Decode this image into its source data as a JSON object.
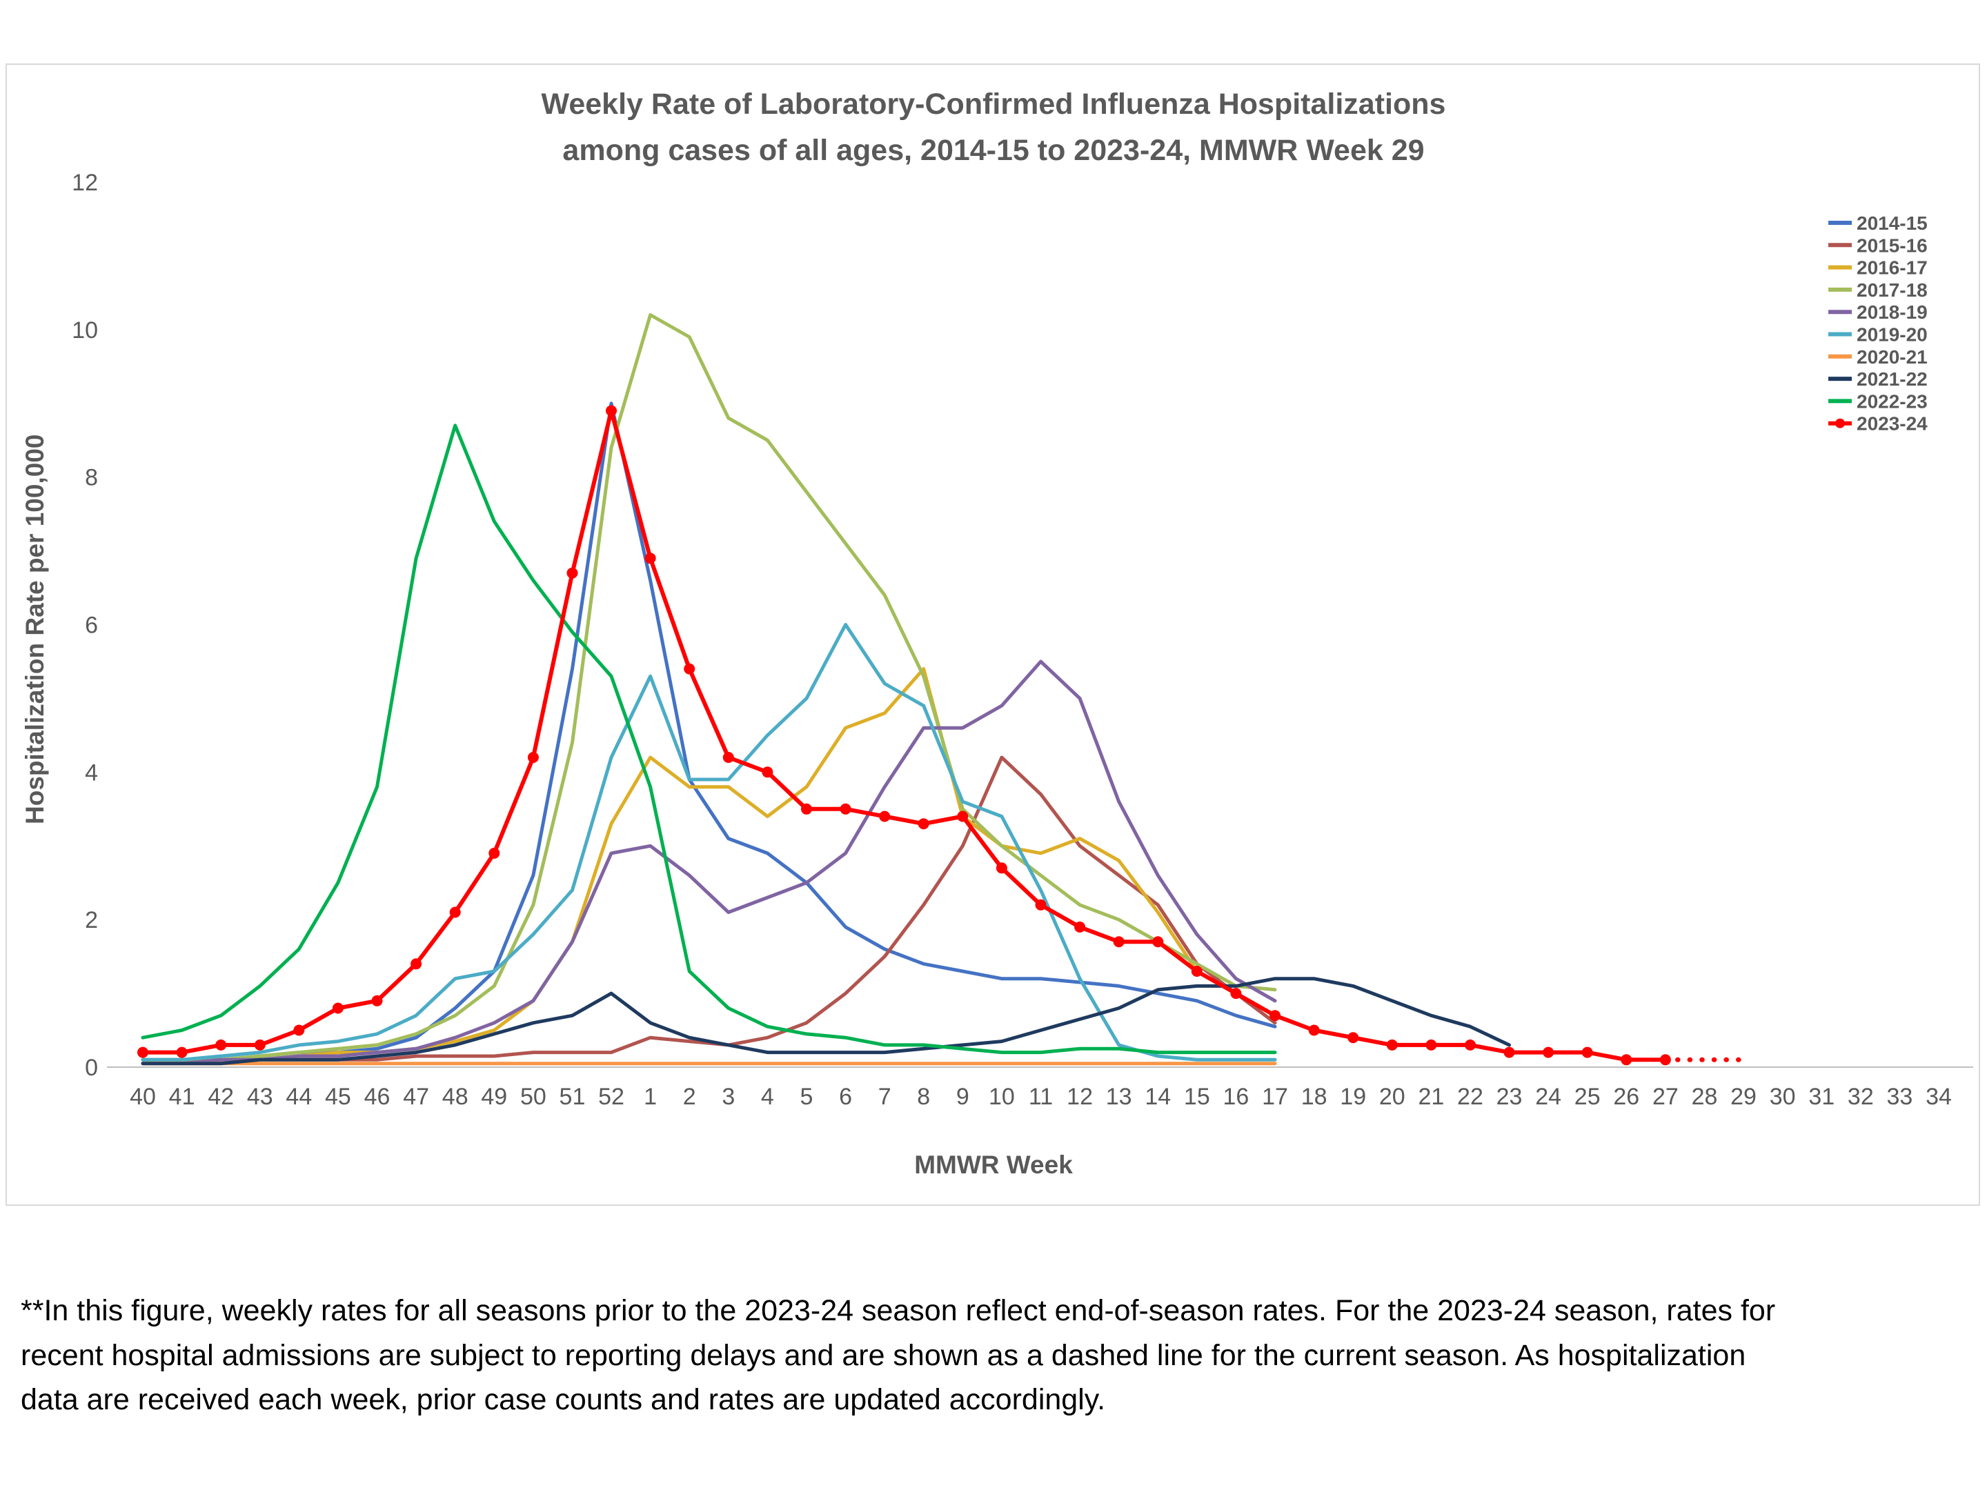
{
  "title": {
    "line1": "Weekly Rate of Laboratory-Confirmed Influenza Hospitalizations",
    "line2": "among cases of all ages, 2014-15 to 2023-24, MMWR Week 29"
  },
  "footnote": "**In this figure, weekly rates for all seasons prior to the 2023-24 season reflect end-of-season rates. For the 2023-24 season, rates for recent hospital admissions are subject to reporting delays and are shown as a dashed line for the current season. As hospitalization data are received each week, prior case counts and rates are updated accordingly.",
  "chart_data": {
    "type": "line",
    "title": "Weekly Rate of Laboratory-Confirmed Influenza Hospitalizations among cases of all ages, 2014-15 to 2023-24, MMWR Week 29",
    "xlabel": "MMWR Week",
    "ylabel": "Hospitalization Rate per 100,000",
    "ylim": [
      0,
      12
    ],
    "yticks": [
      0,
      2,
      4,
      6,
      8,
      10,
      12
    ],
    "grid": false,
    "legend_position": "right",
    "axis_color": "#bfbfbf",
    "text_color": "#595959",
    "categories": [
      "40",
      "41",
      "42",
      "43",
      "44",
      "45",
      "46",
      "47",
      "48",
      "49",
      "50",
      "51",
      "52",
      "1",
      "2",
      "3",
      "4",
      "5",
      "6",
      "7",
      "8",
      "9",
      "10",
      "11",
      "12",
      "13",
      "14",
      "15",
      "16",
      "17",
      "18",
      "19",
      "20",
      "21",
      "22",
      "23",
      "24",
      "25",
      "26",
      "27",
      "28",
      "29",
      "30",
      "31",
      "32",
      "33",
      "34"
    ],
    "series": [
      {
        "name": "2014-15",
        "color": "#4472C4",
        "values": [
          0.1,
          0.1,
          0.1,
          0.15,
          0.2,
          0.2,
          0.25,
          0.4,
          0.8,
          1.3,
          2.6,
          5.4,
          9.0,
          6.6,
          3.9,
          3.1,
          2.9,
          2.5,
          1.9,
          1.6,
          1.4,
          1.3,
          1.2,
          1.2,
          1.15,
          1.1,
          1.0,
          0.9,
          0.7,
          0.55,
          null,
          null,
          null,
          null,
          null,
          null,
          null,
          null,
          null,
          null,
          null,
          null,
          null,
          null,
          null,
          null,
          null
        ]
      },
      {
        "name": "2015-16",
        "color": "#B2544F",
        "values": [
          0.05,
          0.05,
          0.05,
          0.1,
          0.1,
          0.1,
          0.1,
          0.15,
          0.15,
          0.15,
          0.2,
          0.2,
          0.2,
          0.4,
          0.35,
          0.3,
          0.4,
          0.6,
          1.0,
          1.5,
          2.2,
          3.0,
          4.2,
          3.7,
          3.0,
          2.6,
          2.2,
          1.4,
          1.0,
          0.6,
          null,
          null,
          null,
          null,
          null,
          null,
          null,
          null,
          null,
          null,
          null,
          null,
          null,
          null,
          null,
          null,
          null
        ]
      },
      {
        "name": "2016-17",
        "color": "#DDAE27",
        "values": [
          0.05,
          0.1,
          0.1,
          0.1,
          0.15,
          0.2,
          0.2,
          0.25,
          0.35,
          0.5,
          0.9,
          1.7,
          3.3,
          4.2,
          3.8,
          3.8,
          3.4,
          3.8,
          4.6,
          4.8,
          5.4,
          3.4,
          3.0,
          2.9,
          3.1,
          2.8,
          2.1,
          1.3,
          1.0,
          0.7,
          null,
          null,
          null,
          null,
          null,
          null,
          null,
          null,
          null,
          null,
          null,
          null,
          null,
          null,
          null,
          null,
          null
        ]
      },
      {
        "name": "2017-18",
        "color": "#A3BD5A",
        "values": [
          0.1,
          0.1,
          0.1,
          0.15,
          0.2,
          0.25,
          0.3,
          0.45,
          0.7,
          1.1,
          2.2,
          4.4,
          8.4,
          10.2,
          9.9,
          8.8,
          8.5,
          7.8,
          7.1,
          6.4,
          5.3,
          3.5,
          3.0,
          2.6,
          2.2,
          2.0,
          1.7,
          1.4,
          1.1,
          1.05,
          null,
          null,
          null,
          null,
          null,
          null,
          null,
          null,
          null,
          null,
          null,
          null,
          null,
          null,
          null,
          null,
          null
        ]
      },
      {
        "name": "2018-19",
        "color": "#8064A2",
        "values": [
          0.05,
          0.05,
          0.1,
          0.1,
          0.15,
          0.15,
          0.2,
          0.25,
          0.4,
          0.6,
          0.9,
          1.7,
          2.9,
          3.0,
          2.6,
          2.1,
          2.3,
          2.5,
          2.9,
          3.8,
          4.6,
          4.6,
          4.9,
          5.5,
          5.0,
          3.6,
          2.6,
          1.8,
          1.2,
          0.9,
          null,
          null,
          null,
          null,
          null,
          null,
          null,
          null,
          null,
          null,
          null,
          null,
          null,
          null,
          null,
          null,
          null
        ]
      },
      {
        "name": "2019-20",
        "color": "#4BACC6",
        "values": [
          0.1,
          0.1,
          0.15,
          0.2,
          0.3,
          0.35,
          0.45,
          0.7,
          1.2,
          1.3,
          1.8,
          2.4,
          4.2,
          5.3,
          3.9,
          3.9,
          4.5,
          5.0,
          6.0,
          5.2,
          4.9,
          3.6,
          3.4,
          2.4,
          1.2,
          0.3,
          0.15,
          0.1,
          0.1,
          0.1,
          null,
          null,
          null,
          null,
          null,
          null,
          null,
          null,
          null,
          null,
          null,
          null,
          null,
          null,
          null,
          null,
          null
        ]
      },
      {
        "name": "2020-21",
        "color": "#F79646",
        "values": [
          0.05,
          0.05,
          0.05,
          0.05,
          0.05,
          0.05,
          0.05,
          0.05,
          0.05,
          0.05,
          0.05,
          0.05,
          0.05,
          0.05,
          0.05,
          0.05,
          0.05,
          0.05,
          0.05,
          0.05,
          0.05,
          0.05,
          0.05,
          0.05,
          0.05,
          0.05,
          0.05,
          0.05,
          0.05,
          0.05,
          null,
          null,
          null,
          null,
          null,
          null,
          null,
          null,
          null,
          null,
          null,
          null,
          null,
          null,
          null,
          null,
          null
        ]
      },
      {
        "name": "2021-22",
        "color": "#1F3A5F",
        "values": [
          0.05,
          0.05,
          0.05,
          0.1,
          0.1,
          0.1,
          0.15,
          0.2,
          0.3,
          0.45,
          0.6,
          0.7,
          1.0,
          0.6,
          0.4,
          0.3,
          0.2,
          0.2,
          0.2,
          0.2,
          0.25,
          0.3,
          0.35,
          0.5,
          0.65,
          0.8,
          1.05,
          1.1,
          1.1,
          1.2,
          1.2,
          1.1,
          0.9,
          0.7,
          0.55,
          0.3,
          null,
          null,
          null,
          null,
          null,
          null,
          null,
          null,
          null,
          null,
          null
        ]
      },
      {
        "name": "2022-23",
        "color": "#00B050",
        "values": [
          0.4,
          0.5,
          0.7,
          1.1,
          1.6,
          2.5,
          3.8,
          6.9,
          8.7,
          7.4,
          6.6,
          5.9,
          5.3,
          3.8,
          1.3,
          0.8,
          0.55,
          0.45,
          0.4,
          0.3,
          0.3,
          0.25,
          0.2,
          0.2,
          0.25,
          0.25,
          0.2,
          0.2,
          0.2,
          0.2,
          null,
          null,
          null,
          null,
          null,
          null,
          null,
          null,
          null,
          null,
          null,
          null,
          null,
          null,
          null,
          null,
          null
        ]
      },
      {
        "name": "2023-24",
        "color": "#FF0000",
        "marker": true,
        "dashed_from_index": 39,
        "values": [
          0.2,
          0.2,
          0.3,
          0.3,
          0.5,
          0.8,
          0.9,
          1.4,
          2.1,
          2.9,
          4.2,
          6.7,
          8.9,
          6.9,
          5.4,
          4.2,
          4.0,
          3.5,
          3.5,
          3.4,
          3.3,
          3.4,
          2.7,
          2.2,
          1.9,
          1.7,
          1.7,
          1.3,
          1.0,
          0.7,
          0.5,
          0.4,
          0.3,
          0.3,
          0.3,
          0.2,
          0.2,
          0.2,
          0.1,
          0.1,
          0.1,
          0.1,
          null,
          null,
          null,
          null,
          null
        ]
      }
    ]
  }
}
